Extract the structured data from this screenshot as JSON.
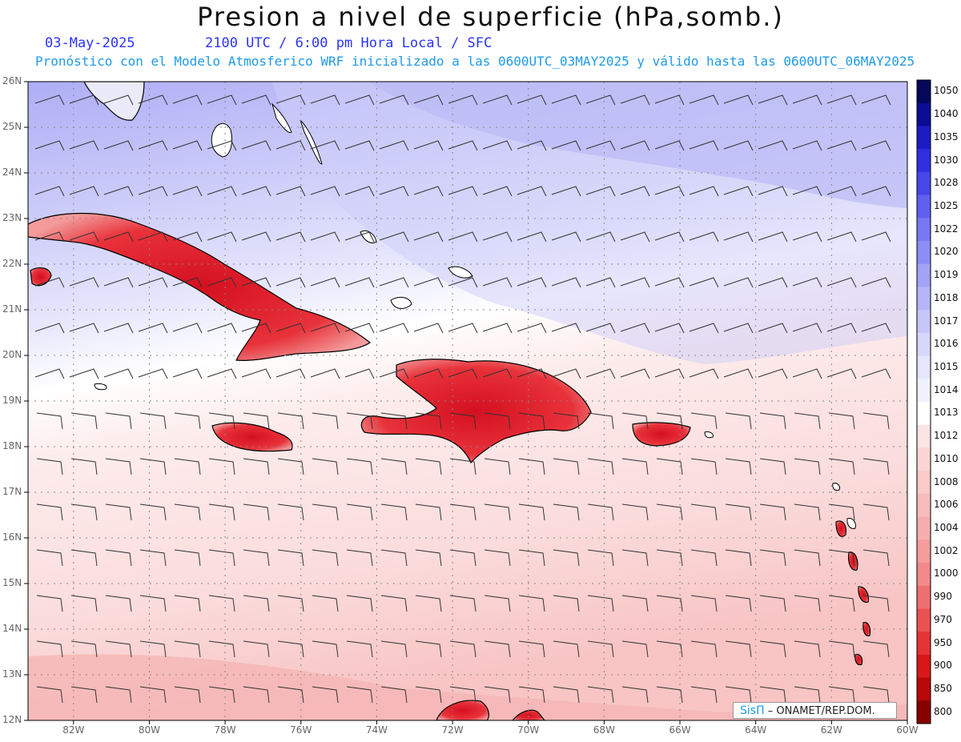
{
  "header": {
    "title": "Presion a nivel de superficie (hPa,somb.)",
    "date": "03-May-2025",
    "time_line": "2100 UTC / 6:00 pm Hora Local / SFC",
    "forecast_line": "Pronóstico con el Modelo Atmosferico WRF inicializado a las 0600UTC_03MAY2025 y válido hasta las  0600UTC_06MAY2025"
  },
  "map": {
    "lat_labels": [
      "26N",
      "25N",
      "24N",
      "23N",
      "22N",
      "21N",
      "20N",
      "19N",
      "18N",
      "17N",
      "16N",
      "15N",
      "14N",
      "13N",
      "12N"
    ],
    "lon_labels": [
      "82W",
      "80W",
      "78W",
      "76W",
      "74W",
      "72W",
      "70W",
      "68W",
      "66W",
      "64W",
      "62W",
      "60W"
    ],
    "lat_range": [
      12,
      26
    ],
    "lon_range": [
      -83.2,
      -60
    ],
    "land_color": "#e0202a",
    "coast_color": "#000000"
  },
  "colorbar": {
    "levels": [
      "1050",
      "1040",
      "1035",
      "1030",
      "1028",
      "1025",
      "1022",
      "1020",
      "1019",
      "1018",
      "1017",
      "1016",
      "1015",
      "1014",
      "1013",
      "1012",
      "1010",
      "1008",
      "1006",
      "1004",
      "1002",
      "1000",
      "990",
      "970",
      "950",
      "900",
      "850",
      "800"
    ],
    "colors": [
      "#06065a",
      "#0b0b96",
      "#1c1cc4",
      "#2f2fe0",
      "#4747ea",
      "#5f5ff0",
      "#7878f3",
      "#8d8df5",
      "#a2a2f7",
      "#b5b5f8",
      "#c6c6fa",
      "#d7d7fb",
      "#e5e5fc",
      "#f1f1fd",
      "#ffffff",
      "#fde4e4",
      "#fcd6d6",
      "#fbcaca",
      "#f9bcbc",
      "#f7aeae",
      "#f59c9c",
      "#f28a8a",
      "#ee6f6f",
      "#ea5252",
      "#e43434",
      "#d81818",
      "#b80808",
      "#880000"
    ]
  },
  "credit": {
    "brand": "SisΠ",
    "text": " – ONAMET/REP.DOM."
  }
}
